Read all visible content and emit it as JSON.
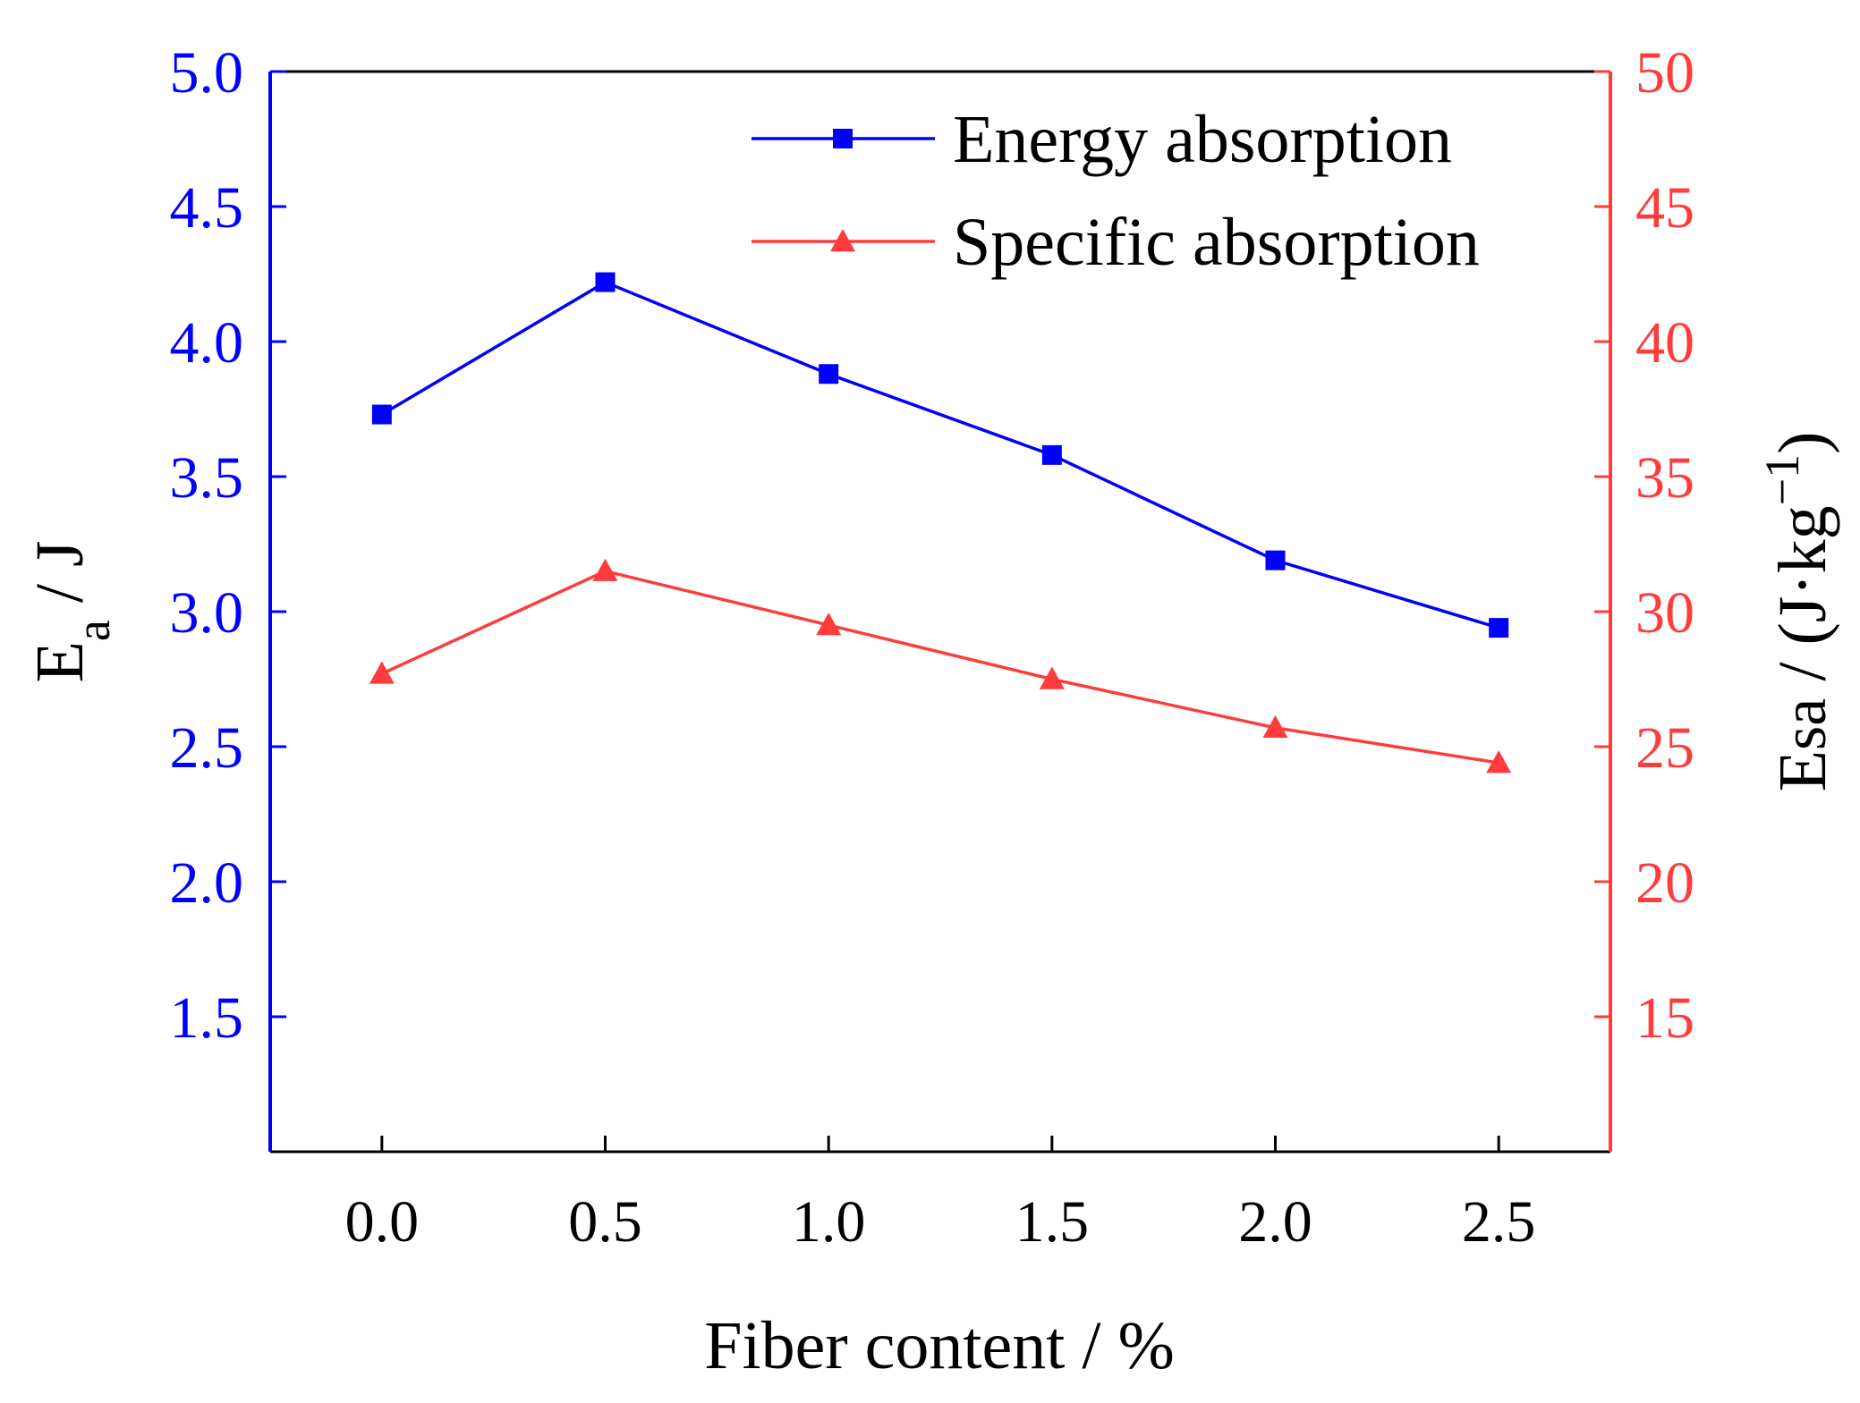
{
  "chart_data": {
    "type": "line",
    "x": [
      0.0,
      0.5,
      1.0,
      1.5,
      2.0,
      2.5
    ],
    "xlabel": "Fiber content / %",
    "xlim": [
      -0.25,
      2.75
    ],
    "xticks": [
      "0.0",
      "0.5",
      "1.0",
      "1.5",
      "2.0",
      "2.5"
    ],
    "ylabel_left": {
      "main": "E",
      "sub": "a",
      "suffix": " / J"
    },
    "ylim_left": [
      1.0,
      5.0
    ],
    "yticks_left": [
      "1.5",
      "2.0",
      "2.5",
      "3.0",
      "3.5",
      "4.0",
      "4.5",
      "5.0"
    ],
    "ylabel_right": {
      "prefix": "E",
      "sub": "sa",
      "middle": " / (J·kg",
      "sup": "−1",
      "suffix": ")"
    },
    "ylim_right": [
      10,
      50
    ],
    "yticks_right": [
      "15",
      "20",
      "25",
      "30",
      "35",
      "40",
      "45",
      "50"
    ],
    "grid": false,
    "legend_position": "top-right",
    "series": [
      {
        "name": "Energy absorption",
        "axis": "left",
        "marker": "square",
        "color": "#0000ff",
        "values": [
          3.73,
          4.22,
          3.88,
          3.58,
          3.19,
          2.94
        ]
      },
      {
        "name": "Specific absorption",
        "axis": "right",
        "marker": "triangle",
        "color": "#ff3b3b",
        "values": [
          27.7,
          31.5,
          29.5,
          27.5,
          25.7,
          24.4
        ]
      }
    ]
  }
}
